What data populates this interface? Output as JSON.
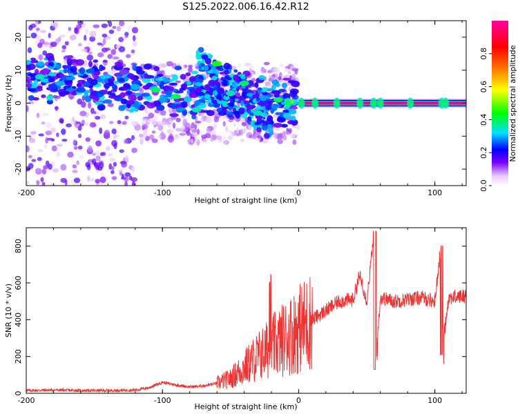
{
  "title": "S125.2022.006.16.42.R12",
  "chart_data": [
    {
      "type": "heatmap",
      "xlabel": "Height of straight line (km)",
      "ylabel": "Frequency (Hz)",
      "xlim": [
        -200,
        123
      ],
      "ylim": [
        -25,
        25
      ],
      "x_ticks": [
        -200,
        -100,
        0,
        100
      ],
      "x_tick_labels": [
        "-200",
        "-100",
        "0",
        "100"
      ],
      "y_ticks": [
        -20,
        -10,
        0,
        10,
        20
      ],
      "y_tick_labels": [
        "-20",
        "-10",
        "0",
        "10",
        "20"
      ],
      "colorbar": {
        "label": "Normalized spectral amplitude",
        "range": [
          0,
          1
        ],
        "ticks": [
          0.0,
          0.2,
          0.4,
          0.6,
          0.8
        ],
        "tick_labels": [
          "0.0",
          "0.2",
          "0.4",
          "0.6",
          "0.8"
        ],
        "colors": [
          "#ffffff",
          "#7a00ff",
          "#0000ff",
          "#00e0ff",
          "#00ff00",
          "#ffff00",
          "#ff8000",
          "#ff0000",
          "#ff00a0"
        ]
      },
      "features": {
        "carrier_line": {
          "x_start": 0,
          "x_end": 123,
          "frequency": 0,
          "amplitude": 0.95
        },
        "clusters": [
          {
            "x": -190,
            "y": 8,
            "amp": 0.35
          },
          {
            "x": -175,
            "y": 6,
            "amp": 0.3
          },
          {
            "x": -160,
            "y": 4,
            "amp": 0.25
          },
          {
            "x": -120,
            "y": 5,
            "amp": 0.3
          },
          {
            "x": -105,
            "y": 4,
            "amp": 0.4
          },
          {
            "x": -90,
            "y": 2,
            "amp": 0.4
          },
          {
            "x": -75,
            "y": -2,
            "amp": 0.35
          },
          {
            "x": -60,
            "y": 12,
            "amp": 0.45
          },
          {
            "x": -50,
            "y": 3,
            "amp": 0.35
          },
          {
            "x": -40,
            "y": 6,
            "amp": 0.4
          },
          {
            "x": -30,
            "y": -3,
            "amp": 0.35
          },
          {
            "x": -15,
            "y": 1,
            "amp": 0.4
          },
          {
            "x": -7,
            "y": 0.5,
            "amp": 0.5
          },
          {
            "x": 10,
            "y": 0.5,
            "amp": 0.6
          }
        ]
      }
    },
    {
      "type": "line",
      "xlabel": "Height of straight line (km)",
      "ylabel": "SNR (10 * v/v)",
      "xlim": [
        -200,
        123
      ],
      "ylim": [
        0,
        900
      ],
      "x_ticks": [
        -200,
        -100,
        0,
        100
      ],
      "x_tick_labels": [
        "-200",
        "-100",
        "0",
        "100"
      ],
      "y_ticks": [
        0,
        200,
        400,
        600,
        800
      ],
      "y_tick_labels": [
        "0",
        "200",
        "400",
        "600",
        "800"
      ],
      "series": [
        {
          "color": "#ee3333",
          "x": [
            -200,
            -180,
            -160,
            -140,
            -120,
            -110,
            -100,
            -90,
            -80,
            -70,
            -60,
            -50,
            -40,
            -30,
            -20,
            -10,
            0,
            10,
            20,
            30,
            40,
            45,
            50,
            55,
            56,
            60,
            70,
            80,
            90,
            100,
            104,
            105,
            110,
            123
          ],
          "values": [
            15,
            18,
            15,
            15,
            18,
            30,
            60,
            45,
            35,
            40,
            55,
            80,
            140,
            200,
            250,
            300,
            350,
            400,
            450,
            500,
            510,
            650,
            500,
            850,
            120,
            520,
            500,
            510,
            520,
            500,
            780,
            210,
            520,
            530
          ]
        }
      ]
    }
  ]
}
